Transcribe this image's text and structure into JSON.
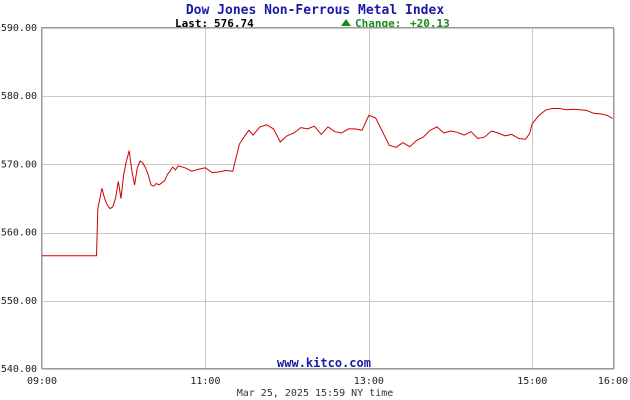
{
  "chart_data": {
    "type": "line",
    "title": "Dow Jones Non-Ferrous Metal Index",
    "last_label": "Last:",
    "last_value": "576.74",
    "change_label": "Change:",
    "change_value": "+20.13",
    "change_color": "#1a8a1a",
    "line_color": "#cc0000",
    "title_color": "#1a1aa6",
    "website": "www.kitco.com",
    "footer": "Mar 25, 2025 15:59 NY time",
    "ylim": [
      540,
      590
    ],
    "y_ticks": [
      "590.00",
      "580.00",
      "570.00",
      "560.00",
      "550.00",
      "540.00"
    ],
    "y_tick_values": [
      590,
      580,
      570,
      560,
      550,
      540
    ],
    "xlim": [
      "09:00",
      "16:00"
    ],
    "x_ticks": [
      "09:00",
      "11:00",
      "13:00",
      "15:00",
      "16:00"
    ],
    "x_tick_values": [
      "09:00",
      "11:00",
      "13:00",
      "15:00",
      "16:00"
    ],
    "grid": true,
    "series": [
      {
        "x": [
          "09:00",
          "09:30",
          "09:40",
          "09:41",
          "09:42",
          "09:44",
          "09:46",
          "09:48",
          "09:50",
          "09:52",
          "09:54",
          "09:56",
          "09:58",
          "10:00",
          "10:02",
          "10:04",
          "10:06",
          "10:08",
          "10:10",
          "10:12",
          "10:14",
          "10:16",
          "10:18",
          "10:20",
          "10:22",
          "10:24",
          "10:26",
          "10:28",
          "10:30",
          "10:32",
          "10:34",
          "10:36",
          "10:38",
          "10:40",
          "10:45",
          "10:50",
          "10:55",
          "11:00",
          "11:05",
          "11:10",
          "11:15",
          "11:20",
          "11:25",
          "11:30",
          "11:32",
          "11:35",
          "11:40",
          "11:45",
          "11:50",
          "11:55",
          "12:00",
          "12:05",
          "12:10",
          "12:15",
          "12:20",
          "12:25",
          "12:30",
          "12:35",
          "12:40",
          "12:45",
          "12:50",
          "12:55",
          "13:00",
          "13:05",
          "13:10",
          "13:15",
          "13:20",
          "13:25",
          "13:30",
          "13:35",
          "13:40",
          "13:45",
          "13:50",
          "13:55",
          "14:00",
          "14:05",
          "14:10",
          "14:15",
          "14:20",
          "14:25",
          "14:30",
          "14:35",
          "14:40",
          "14:45",
          "14:50",
          "14:55",
          "14:58",
          "15:00",
          "15:05",
          "15:10",
          "15:15",
          "15:20",
          "15:25",
          "15:30",
          "15:35",
          "15:40",
          "15:45",
          "15:50",
          "15:55",
          "15:59"
        ],
        "values": [
          556.6,
          556.6,
          556.6,
          563.5,
          564.5,
          566.5,
          565.0,
          564.0,
          563.5,
          563.8,
          565.0,
          567.5,
          565.0,
          568.5,
          570.5,
          572.0,
          569.0,
          567.0,
          569.5,
          570.5,
          570.2,
          569.5,
          568.5,
          567.0,
          566.8,
          567.2,
          567.0,
          567.3,
          567.6,
          568.5,
          569.0,
          569.6,
          569.2,
          569.8,
          569.5,
          569.0,
          569.3,
          569.5,
          568.8,
          568.9,
          569.1,
          569.0,
          573.0,
          574.5,
          575.0,
          574.3,
          575.5,
          575.8,
          575.2,
          573.3,
          574.2,
          574.6,
          575.4,
          575.2,
          575.6,
          574.4,
          575.5,
          574.8,
          574.6,
          575.2,
          575.2,
          575.0,
          577.2,
          576.8,
          574.8,
          572.8,
          572.5,
          573.2,
          572.6,
          573.5,
          574.0,
          575.0,
          575.5,
          574.6,
          574.9,
          574.7,
          574.3,
          574.8,
          573.8,
          574.0,
          574.9,
          574.6,
          574.2,
          574.4,
          573.8,
          573.7,
          574.5,
          576.0,
          577.2,
          578.0,
          578.2,
          578.2,
          578.0,
          578.1,
          578.0,
          577.9,
          577.5,
          577.4,
          577.2,
          576.74
        ]
      }
    ]
  }
}
